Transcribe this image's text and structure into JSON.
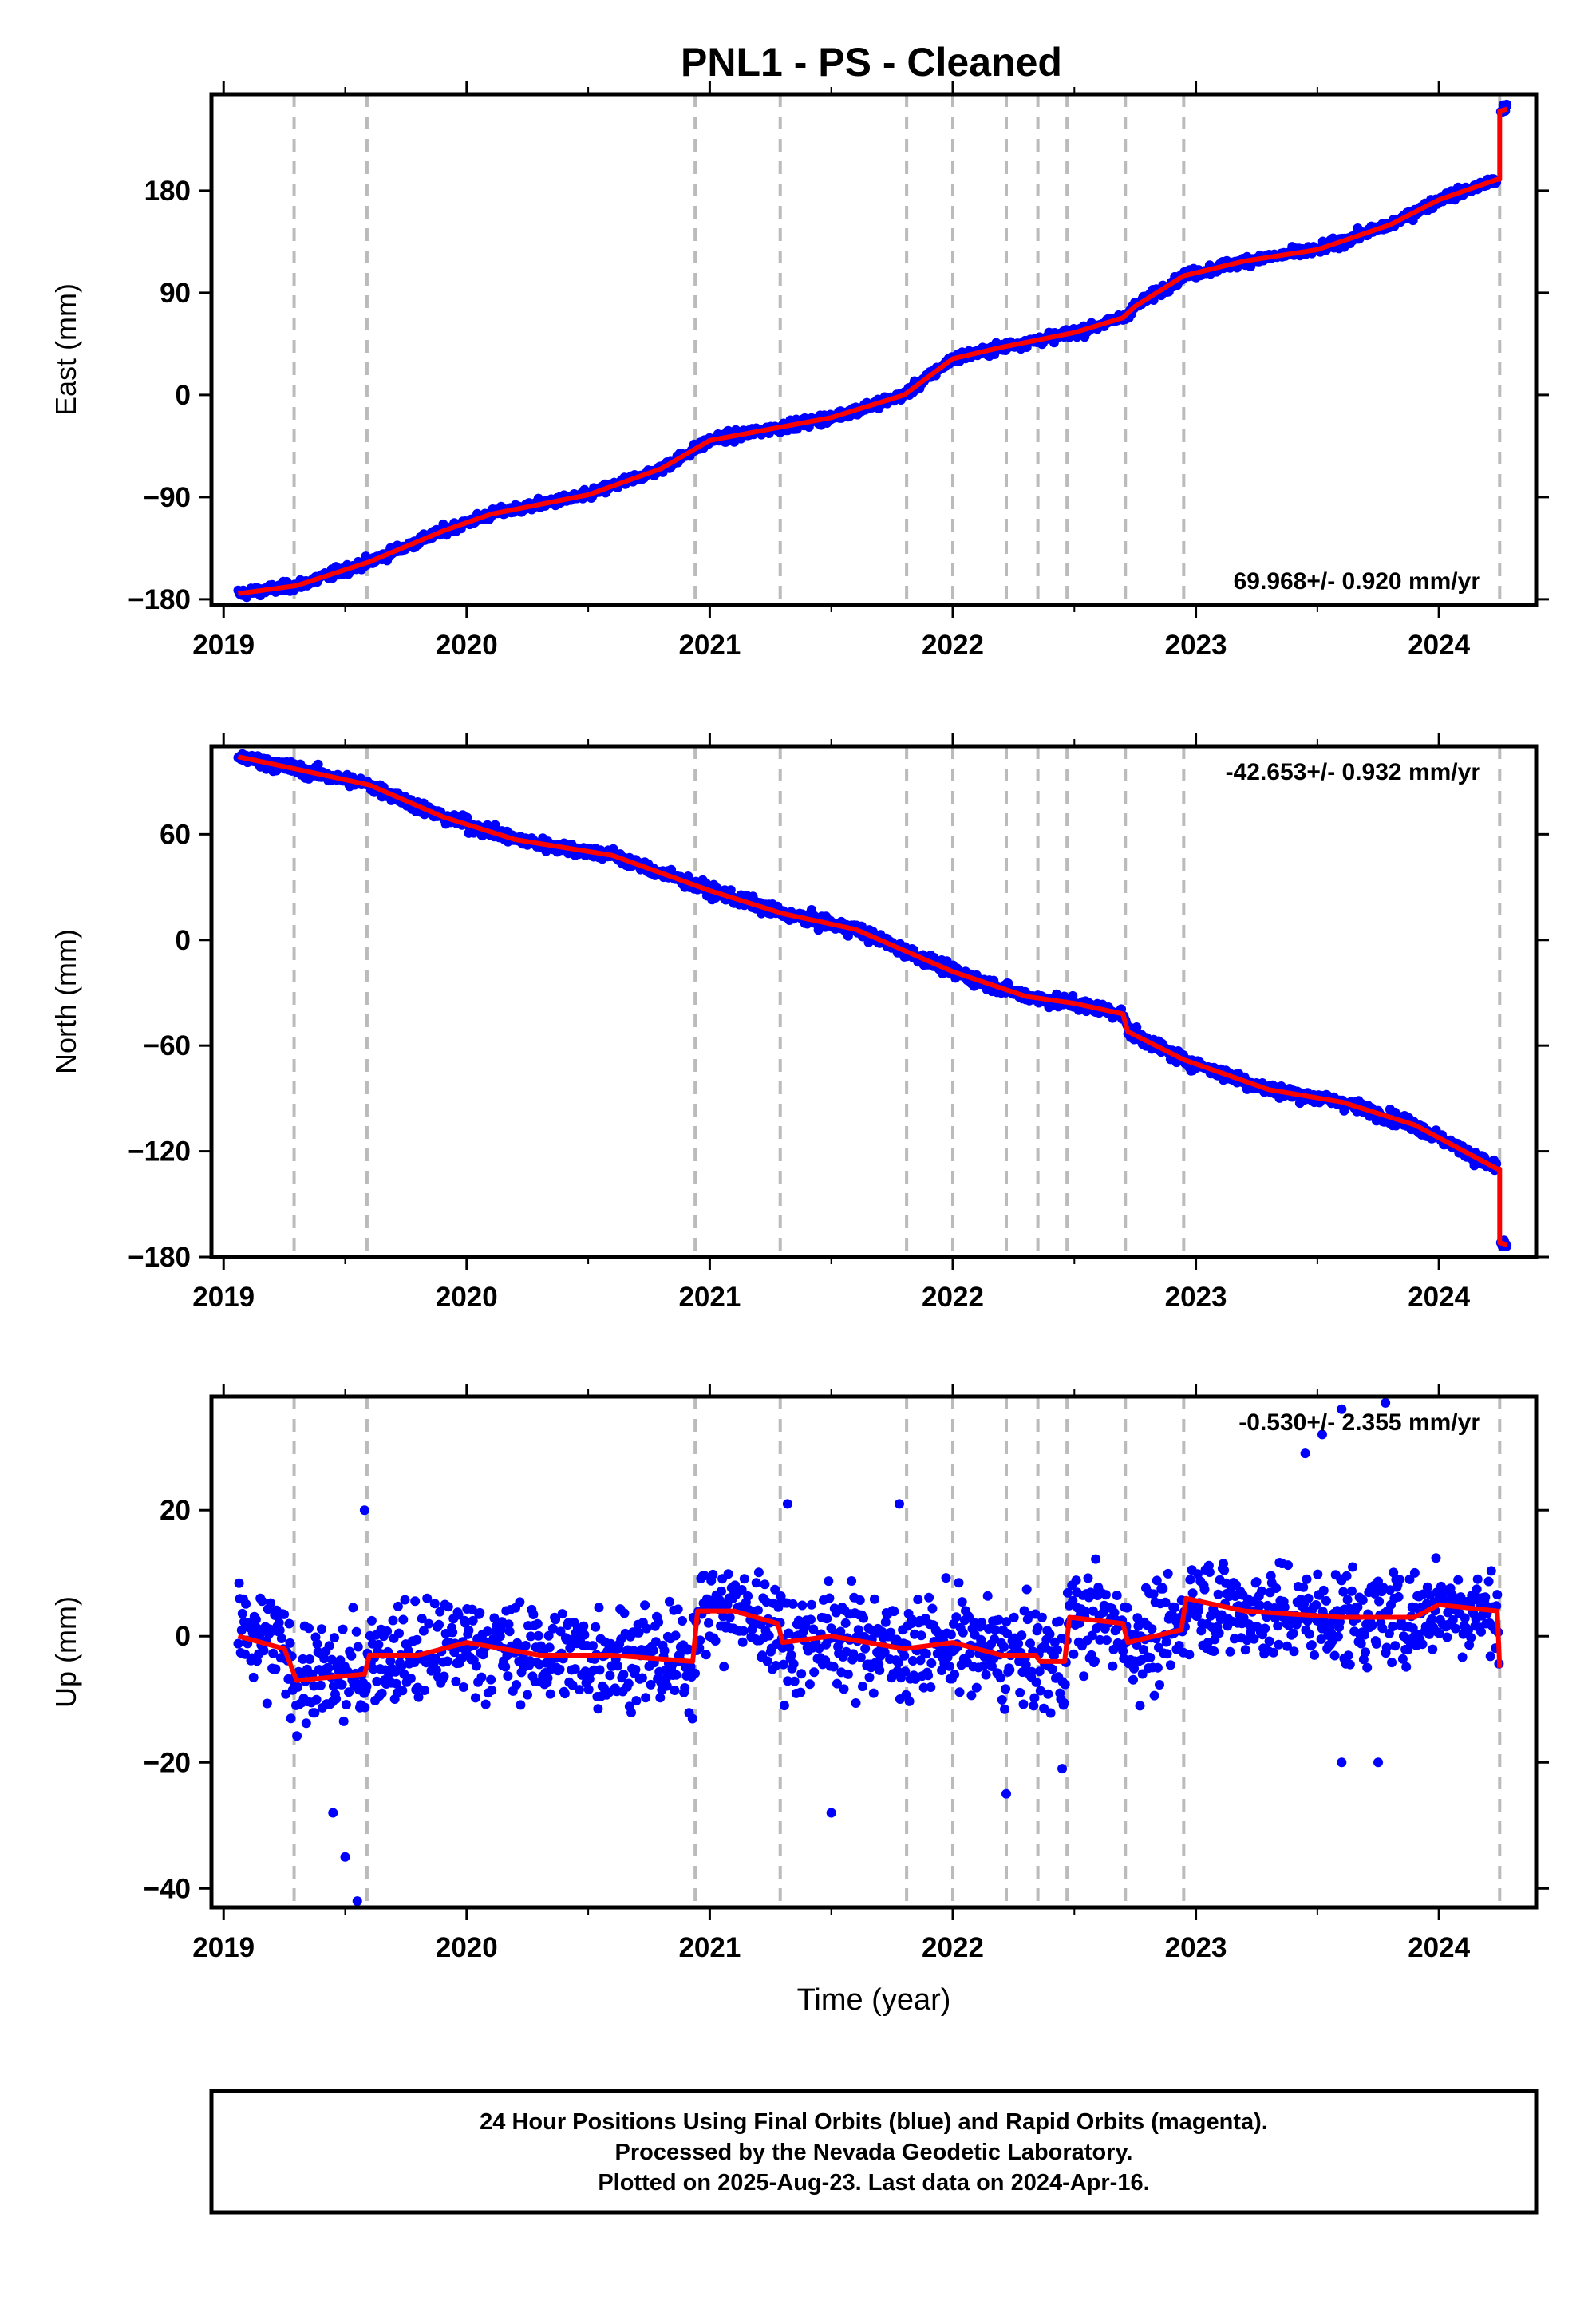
{
  "title": "PNL1  - PS - Cleaned",
  "footer": {
    "lines": [
      "24 Hour Positions Using Final Orbits (blue) and Rapid Orbits (magenta).",
      "Processed by the Nevada Geodetic Laboratory.",
      "Plotted on 2025-Aug-23. Last data on 2024-Apr-16."
    ]
  },
  "colors": {
    "points": "#0000ff",
    "model": "#ff0000",
    "events": "#bbbbbb",
    "frame": "#000000"
  },
  "chart_data": [
    {
      "type": "scatter",
      "panel": "east",
      "ylabel": "East (mm)",
      "xlabel": "",
      "xlim": [
        2018.95,
        2024.4
      ],
      "ylim": [
        -185,
        265
      ],
      "xticks": [
        2019,
        2020,
        2021,
        2022,
        2023,
        2024
      ],
      "yticks": [
        -180,
        -90,
        0,
        90,
        180
      ],
      "rate_label": "69.968+/- 0.920 mm/yr",
      "rate_position": "bottom-right",
      "event_lines": [
        2019.29,
        2019.59,
        2020.94,
        2021.29,
        2021.81,
        2022.0,
        2022.22,
        2022.35,
        2022.47,
        2022.71,
        2022.95,
        2024.25
      ],
      "trend_points": [
        [
          2019.06,
          -175
        ],
        [
          2019.3,
          -168
        ],
        [
          2019.6,
          -147
        ],
        [
          2019.9,
          -120
        ],
        [
          2020.1,
          -105
        ],
        [
          2020.5,
          -88
        ],
        [
          2020.8,
          -65
        ],
        [
          2021.0,
          -40
        ],
        [
          2021.3,
          -28
        ],
        [
          2021.5,
          -20
        ],
        [
          2021.8,
          0
        ],
        [
          2022.0,
          32
        ],
        [
          2022.2,
          42
        ],
        [
          2022.5,
          55
        ],
        [
          2022.7,
          68
        ],
        [
          2022.75,
          78
        ],
        [
          2022.95,
          105
        ],
        [
          2023.2,
          118
        ],
        [
          2023.5,
          128
        ],
        [
          2023.8,
          150
        ],
        [
          2024.0,
          172
        ],
        [
          2024.24,
          190
        ],
        [
          2024.25,
          190
        ],
        [
          2024.25,
          250
        ],
        [
          2024.28,
          252
        ]
      ],
      "series": [
        {
          "name": "Final Orbits (blue)",
          "noise_mm": 3
        },
        {
          "name": "model",
          "noise_mm": 0
        }
      ]
    },
    {
      "type": "scatter",
      "panel": "north",
      "ylabel": "North (mm)",
      "xlabel": "",
      "xlim": [
        2018.95,
        2024.4
      ],
      "ylim": [
        -180,
        110
      ],
      "xticks": [
        2019,
        2020,
        2021,
        2022,
        2023,
        2024
      ],
      "yticks": [
        -180,
        -120,
        -60,
        0,
        60
      ],
      "rate_label": "-42.653+/- 0.932 mm/yr",
      "rate_position": "top-right",
      "event_lines": [
        2019.29,
        2019.59,
        2020.94,
        2021.29,
        2021.81,
        2022.0,
        2022.22,
        2022.35,
        2022.47,
        2022.71,
        2022.95,
        2024.25
      ],
      "trend_points": [
        [
          2019.06,
          104
        ],
        [
          2019.3,
          97
        ],
        [
          2019.6,
          88
        ],
        [
          2019.9,
          70
        ],
        [
          2020.2,
          57
        ],
        [
          2020.6,
          48
        ],
        [
          2021.0,
          28
        ],
        [
          2021.3,
          15
        ],
        [
          2021.6,
          6
        ],
        [
          2022.0,
          -18
        ],
        [
          2022.3,
          -32
        ],
        [
          2022.5,
          -36
        ],
        [
          2022.7,
          -42
        ],
        [
          2022.72,
          -52
        ],
        [
          2022.95,
          -68
        ],
        [
          2023.3,
          -85
        ],
        [
          2023.6,
          -92
        ],
        [
          2023.9,
          -105
        ],
        [
          2024.24,
          -130
        ],
        [
          2024.25,
          -130
        ],
        [
          2024.25,
          -172
        ],
        [
          2024.28,
          -173
        ]
      ],
      "series": [
        {
          "name": "Final Orbits (blue)",
          "noise_mm": 2.5
        },
        {
          "name": "model",
          "noise_mm": 0
        }
      ]
    },
    {
      "type": "scatter",
      "panel": "up",
      "ylabel": "Up (mm)",
      "xlabel": "Time (year)",
      "xlim": [
        2018.95,
        2024.4
      ],
      "ylim": [
        -43,
        38
      ],
      "xticks": [
        2019,
        2020,
        2021,
        2022,
        2023,
        2024
      ],
      "yticks": [
        -40,
        -20,
        0,
        20
      ],
      "rate_label": "-0.530+/- 2.355 mm/yr",
      "rate_position": "top-right",
      "event_lines": [
        2019.29,
        2019.59,
        2020.94,
        2021.29,
        2021.81,
        2022.0,
        2022.22,
        2022.35,
        2022.47,
        2022.71,
        2022.95,
        2024.25
      ],
      "trend_points": [
        [
          2019.06,
          0
        ],
        [
          2019.25,
          -2
        ],
        [
          2019.3,
          -7
        ],
        [
          2019.58,
          -6
        ],
        [
          2019.6,
          -3
        ],
        [
          2019.8,
          -3
        ],
        [
          2020.0,
          -1
        ],
        [
          2020.3,
          -3
        ],
        [
          2020.6,
          -3
        ],
        [
          2020.93,
          -4
        ],
        [
          2020.95,
          4
        ],
        [
          2021.1,
          4
        ],
        [
          2021.28,
          2
        ],
        [
          2021.3,
          -1
        ],
        [
          2021.5,
          0
        ],
        [
          2021.8,
          -2
        ],
        [
          2022.0,
          -1
        ],
        [
          2022.2,
          -3
        ],
        [
          2022.34,
          -3
        ],
        [
          2022.36,
          -4
        ],
        [
          2022.46,
          -4
        ],
        [
          2022.48,
          3
        ],
        [
          2022.7,
          2
        ],
        [
          2022.72,
          -1
        ],
        [
          2022.94,
          1
        ],
        [
          2022.96,
          6
        ],
        [
          2023.2,
          4
        ],
        [
          2023.6,
          3
        ],
        [
          2023.9,
          3
        ],
        [
          2024.0,
          5
        ],
        [
          2024.24,
          4
        ],
        [
          2024.25,
          -5
        ]
      ],
      "outliers": [
        [
          2019.58,
          20
        ],
        [
          2019.55,
          -42
        ],
        [
          2019.5,
          -35
        ],
        [
          2019.45,
          -28
        ],
        [
          2021.32,
          21
        ],
        [
          2021.78,
          21
        ],
        [
          2023.45,
          29
        ],
        [
          2023.52,
          32
        ],
        [
          2023.6,
          36
        ],
        [
          2023.78,
          37
        ],
        [
          2022.22,
          -25
        ],
        [
          2021.5,
          -28
        ],
        [
          2023.6,
          -20
        ],
        [
          2023.75,
          -20
        ],
        [
          2022.45,
          -21
        ]
      ],
      "series": [
        {
          "name": "Final Orbits (blue)",
          "noise_mm": 5.5
        },
        {
          "name": "model",
          "noise_mm": 0
        }
      ]
    }
  ]
}
